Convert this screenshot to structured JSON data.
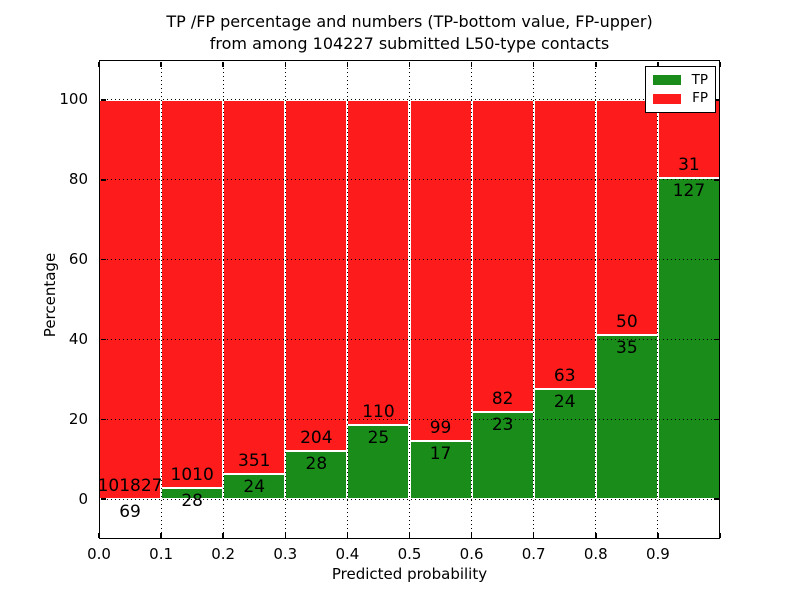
{
  "chart_data": {
    "type": "bar",
    "stacked": true,
    "normalized_to_percent": true,
    "title": "TP /FP percentage and numbers (TP-bottom value, FP-upper)\nfrom among 104227 submitted L50-type contacts",
    "xlabel": "Predicted probability",
    "ylabel": "Percentage",
    "total_contacts": 104227,
    "bin_starts": [
      0.0,
      0.1,
      0.2,
      0.3,
      0.4,
      0.5,
      0.6,
      0.7,
      0.8,
      0.9
    ],
    "bin_width": 0.1,
    "series": [
      {
        "name": "TP",
        "color": "#1a8c1a",
        "counts": [
          69,
          28,
          24,
          28,
          25,
          17,
          23,
          24,
          35,
          127
        ]
      },
      {
        "name": "FP",
        "color": "#fd1b1b",
        "counts": [
          101827,
          1010,
          351,
          204,
          110,
          99,
          82,
          63,
          50,
          31
        ]
      }
    ],
    "tp_percent": [
      0.07,
      2.7,
      6.4,
      12.07,
      18.52,
      14.66,
      21.9,
      27.59,
      41.18,
      80.38
    ],
    "x_ticks": [
      "0.0",
      "0.1",
      "0.2",
      "0.3",
      "0.4",
      "0.5",
      "0.6",
      "0.7",
      "0.8",
      "0.9"
    ],
    "y_ticks": [
      "0",
      "20",
      "40",
      "60",
      "80",
      "100"
    ],
    "xlim": [
      0,
      1
    ],
    "ylim": [
      -10,
      110
    ],
    "grid": true,
    "grid_style": "dotted",
    "bar_edge_color": "#ffffff",
    "legend": {
      "position": "upper right",
      "entries": [
        {
          "label": "TP",
          "color": "#1a8c1a"
        },
        {
          "label": "FP",
          "color": "#fd1b1b"
        }
      ]
    }
  }
}
